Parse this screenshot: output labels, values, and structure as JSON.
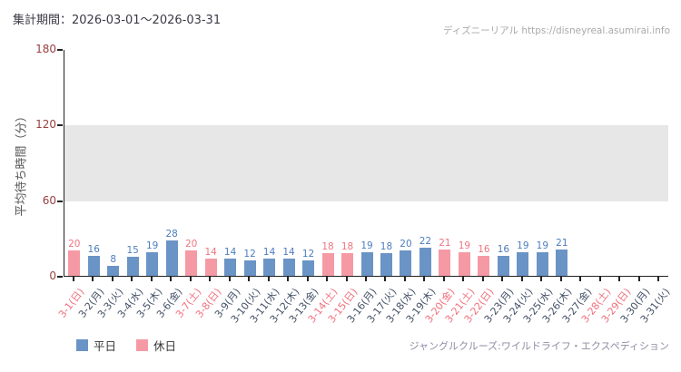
{
  "header": {
    "period": "集計期間：2026-03-01～2026-03-31",
    "watermark": "ディズニーリアル https://disneyreal.asumirai.info"
  },
  "legend": {
    "weekday": "平日",
    "holiday": "休日"
  },
  "footer": {
    "attraction": "ジャングルクルーズ:ワイルドライフ・エクスペディション"
  },
  "colors": {
    "weekday_bar": "#6b94c6",
    "holiday_bar": "#f59aa4",
    "weekday_value": "#4d7ebf",
    "holiday_value": "#ef7580",
    "weekday_tick": "#445066",
    "holiday_tick": "#f0707c",
    "ytick": "#994040",
    "band": "#e7e7e7",
    "axis": "#222222"
  },
  "chart_data": {
    "type": "bar",
    "title": "",
    "ylabel": "平均待ち時間（分）",
    "xlabel": "",
    "ylim": [
      0,
      180
    ],
    "yticks": [
      0,
      60,
      120,
      180
    ],
    "shaded_band": [
      60,
      120
    ],
    "grid": false,
    "legend_position": "bottom-left",
    "categories": [
      "3-1(日)",
      "3-2(月)",
      "3-3(火)",
      "3-4(水)",
      "3-5(木)",
      "3-6(金)",
      "3-7(土)",
      "3-8(日)",
      "3-9(月)",
      "3-10(火)",
      "3-11(水)",
      "3-12(木)",
      "3-13(金)",
      "3-14(土)",
      "3-15(日)",
      "3-16(月)",
      "3-17(火)",
      "3-18(水)",
      "3-19(木)",
      "3-20(金)",
      "3-21(土)",
      "3-22(日)",
      "3-23(月)",
      "3-24(火)",
      "3-25(水)",
      "3-26(木)",
      "3-27(金)",
      "3-28(土)",
      "3-29(日)",
      "3-30(月)",
      "3-31(火)"
    ],
    "values": [
      20,
      16,
      8,
      15,
      19,
      28,
      20,
      14,
      14,
      12,
      14,
      14,
      12,
      18,
      18,
      19,
      18,
      20,
      22,
      21,
      19,
      16,
      16,
      19,
      19,
      21,
      null,
      null,
      null,
      null,
      null
    ],
    "day_type": [
      "holiday",
      "weekday",
      "weekday",
      "weekday",
      "weekday",
      "weekday",
      "holiday",
      "holiday",
      "weekday",
      "weekday",
      "weekday",
      "weekday",
      "weekday",
      "holiday",
      "holiday",
      "weekday",
      "weekday",
      "weekday",
      "weekday",
      "holiday",
      "holiday",
      "holiday",
      "weekday",
      "weekday",
      "weekday",
      "weekday",
      "weekday",
      "holiday",
      "holiday",
      "weekday",
      "weekday"
    ]
  }
}
